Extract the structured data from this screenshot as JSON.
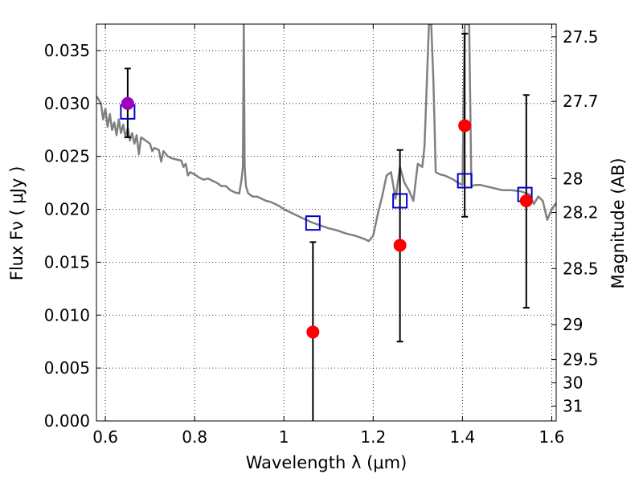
{
  "chart_data": {
    "type": "scatter",
    "title": "",
    "xlabel": "Wavelength  λ (μm)",
    "ylabel": "Flux  Fν  ( μJy )",
    "ylabel_right": "Magnitude (AB)",
    "xlim": [
      0.58,
      1.61
    ],
    "ylim": [
      0.0,
      0.0375
    ],
    "grid": true,
    "x_ticks": [
      {
        "v": 0.6,
        "label": "0.6"
      },
      {
        "v": 0.8,
        "label": "0.8"
      },
      {
        "v": 1.0,
        "label": "1"
      },
      {
        "v": 1.2,
        "label": "1.2"
      },
      {
        "v": 1.4,
        "label": "1.4"
      },
      {
        "v": 1.6,
        "label": "1.6"
      }
    ],
    "y_ticks": [
      {
        "v": 0.0,
        "label": "0.000"
      },
      {
        "v": 0.005,
        "label": "0.005"
      },
      {
        "v": 0.01,
        "label": "0.010"
      },
      {
        "v": 0.015,
        "label": "0.015"
      },
      {
        "v": 0.02,
        "label": "0.020"
      },
      {
        "v": 0.025,
        "label": "0.025"
      },
      {
        "v": 0.03,
        "label": "0.030"
      },
      {
        "v": 0.035,
        "label": "0.035"
      }
    ],
    "right_ticks": [
      {
        "flux": 0.0363,
        "label": "27.5"
      },
      {
        "flux": 0.0302,
        "label": "27.7"
      },
      {
        "flux": 0.0229,
        "label": "28"
      },
      {
        "flux": 0.0197,
        "label": "28.2"
      },
      {
        "flux": 0.0144,
        "label": "28.5"
      },
      {
        "flux": 0.0091,
        "label": "29"
      },
      {
        "flux": 0.0058,
        "label": "29.5"
      },
      {
        "flux": 0.0036,
        "label": "30"
      },
      {
        "flux": 0.0014,
        "label": "31"
      }
    ],
    "model_spectrum": {
      "color": "#808080",
      "x": [
        0.58,
        0.59,
        0.595,
        0.6,
        0.605,
        0.61,
        0.615,
        0.62,
        0.625,
        0.63,
        0.635,
        0.64,
        0.645,
        0.65,
        0.655,
        0.66,
        0.665,
        0.67,
        0.675,
        0.68,
        0.69,
        0.7,
        0.705,
        0.71,
        0.72,
        0.725,
        0.73,
        0.74,
        0.75,
        0.76,
        0.77,
        0.775,
        0.78,
        0.785,
        0.79,
        0.8,
        0.81,
        0.82,
        0.83,
        0.84,
        0.85,
        0.86,
        0.87,
        0.88,
        0.89,
        0.9,
        0.905,
        0.908,
        0.91,
        0.912,
        0.915,
        0.92,
        0.93,
        0.94,
        0.95,
        0.96,
        0.97,
        0.98,
        0.99,
        1.0,
        1.02,
        1.04,
        1.06,
        1.08,
        1.1,
        1.12,
        1.14,
        1.16,
        1.18,
        1.19,
        1.2,
        1.21,
        1.22,
        1.23,
        1.24,
        1.25,
        1.26,
        1.27,
        1.28,
        1.29,
        1.3,
        1.31,
        1.315,
        1.325,
        1.33,
        1.335,
        1.34,
        1.35,
        1.36,
        1.37,
        1.38,
        1.39,
        1.4,
        1.405,
        1.41,
        1.415,
        1.42,
        1.43,
        1.44,
        1.45,
        1.47,
        1.49,
        1.51,
        1.53,
        1.55,
        1.56,
        1.57,
        1.58,
        1.59,
        1.6,
        1.61
      ],
      "y": [
        0.0307,
        0.03,
        0.0285,
        0.0295,
        0.0278,
        0.029,
        0.0275,
        0.0282,
        0.027,
        0.0285,
        0.0272,
        0.028,
        0.0268,
        0.0277,
        0.0265,
        0.0272,
        0.0262,
        0.027,
        0.0252,
        0.0268,
        0.0265,
        0.0262,
        0.0255,
        0.0258,
        0.0256,
        0.0245,
        0.0255,
        0.025,
        0.0248,
        0.0247,
        0.0246,
        0.024,
        0.0243,
        0.0232,
        0.0235,
        0.0233,
        0.023,
        0.0228,
        0.0229,
        0.0227,
        0.0225,
        0.0222,
        0.0222,
        0.0218,
        0.0216,
        0.0215,
        0.0228,
        0.024,
        0.0375,
        0.024,
        0.0222,
        0.0215,
        0.0212,
        0.0212,
        0.021,
        0.0208,
        0.0207,
        0.0205,
        0.0203,
        0.02,
        0.0196,
        0.0192,
        0.0188,
        0.0185,
        0.0182,
        0.018,
        0.0177,
        0.0175,
        0.0172,
        0.017,
        0.0175,
        0.0195,
        0.0212,
        0.0232,
        0.0235,
        0.021,
        0.024,
        0.0225,
        0.0218,
        0.0208,
        0.0243,
        0.024,
        0.026,
        0.0375,
        0.0375,
        0.032,
        0.0235,
        0.0233,
        0.0232,
        0.023,
        0.0228,
        0.0225,
        0.0223,
        0.0375,
        0.0375,
        0.0375,
        0.0222,
        0.0223,
        0.0223,
        0.0222,
        0.022,
        0.0218,
        0.0218,
        0.0217,
        0.0214,
        0.0205,
        0.0212,
        0.0208,
        0.019,
        0.02,
        0.0206
      ]
    },
    "series": [
      {
        "marker": "square-open",
        "color": "#0000cc",
        "x": [
          0.65,
          1.065,
          1.26,
          1.405,
          1.54
        ],
        "y": [
          0.0292,
          0.0187,
          0.0208,
          0.0227,
          0.0214
        ]
      },
      {
        "marker": "circle",
        "color": "#ff0000",
        "x": [
          0.65,
          1.065,
          1.26,
          1.405,
          1.543
        ],
        "y": [
          0.03,
          0.0084,
          0.0166,
          0.0279,
          0.0208
        ],
        "err_low": [
          0.0268,
          0.0,
          0.0075,
          0.0193,
          0.0107
        ],
        "err_high": [
          0.0333,
          0.0169,
          0.0256,
          0.0366,
          0.0308
        ],
        "point_colors": [
          "#a000c0",
          "#ff0000",
          "#ff0000",
          "#ff0000",
          "#ff0000"
        ]
      }
    ]
  }
}
